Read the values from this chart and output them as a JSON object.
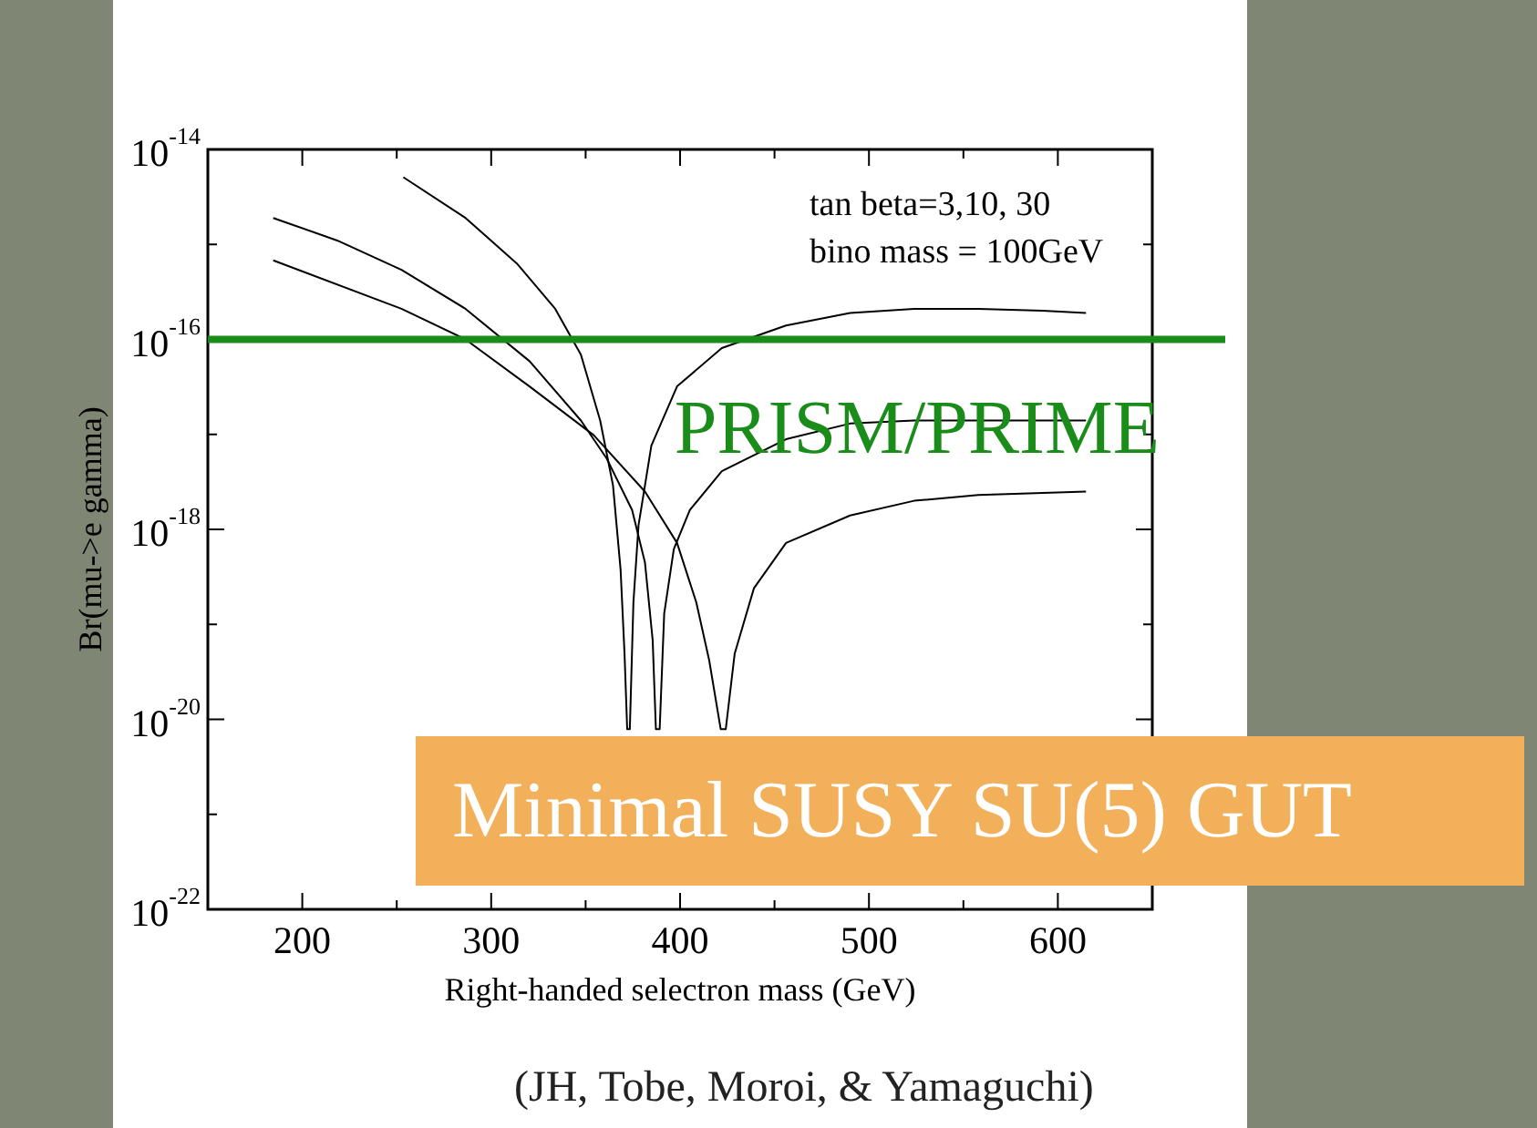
{
  "chart_data": {
    "type": "line",
    "xlabel": "Right-handed selectron mass (GeV)",
    "ylabel": "Br(mu->e gamma)",
    "log": "y",
    "xlim": [
      150,
      650
    ],
    "ylim": [
      1e-22,
      1e-14
    ],
    "xticks": [
      200,
      {
        "value": 250,
        "label": null
      },
      300,
      {
        "value": 350,
        "label": null
      },
      400,
      {
        "value": 450,
        "label": null
      },
      500,
      {
        "value": 550,
        "label": null
      },
      600
    ],
    "yticks": [
      {
        "value": 1e-22,
        "label": "10$^{-22}$"
      },
      {
        "value": 1e-21,
        "label": null
      },
      {
        "value": 1e-20,
        "label": "10$^{-20}$"
      },
      {
        "value": 1e-19,
        "label": null
      },
      {
        "value": 1e-18,
        "label": "10$^{-18}$"
      },
      {
        "value": 1e-17,
        "label": null
      },
      {
        "value": 1e-16,
        "label": "10$^{-16}$"
      },
      {
        "value": 1e-15,
        "label": null
      },
      {
        "value": 1e-14,
        "label": "10$^{-14}$"
      }
    ],
    "marker": "none",
    "legend": false,
    "grid": false,
    "series": [
      {
        "color": "#000000",
        "x": [
          253.5,
          286.4,
          313.6,
          333.9,
          347.5,
          357.7,
          364.5,
          368.5,
          370.6,
          372.0,
          373.4,
          375.3,
          378.0,
          384.8,
          398.4,
          422.1,
          456.1,
          490.0,
          523.9,
          557.9,
          591.8,
          614.9
        ],
        "values": [
          5.1e-15,
          1.9e-15,
          6.3e-16,
          2.1e-16,
          6.9e-17,
          1.4e-17,
          2.9e-18,
          3.8e-19,
          4.9e-20,
          7.9e-21,
          7.9e-21,
          1.7e-19,
          1.1e-18,
          7.6e-18,
          3.2e-17,
          8.1e-17,
          1.4e-16,
          1.9e-16,
          2.1e-16,
          2.1e-16,
          2e-16,
          1.9e-16
        ]
      },
      {
        "color": "#000000",
        "x": [
          184.6,
          218.5,
          252.5,
          286.4,
          320.3,
          347.5,
          361.1,
          374.6,
          381.4,
          385.5,
          387.2,
          389.2,
          391.6,
          396.7,
          405.2,
          422.1,
          456.1,
          490.0,
          523.9,
          557.9,
          614.9
        ],
        "values": [
          1.9e-15,
          1.1e-15,
          5.4e-16,
          2.1e-16,
          5.9e-17,
          1.4e-17,
          5.6e-18,
          1.6e-18,
          4.5e-19,
          6.8e-20,
          7.9e-21,
          7.9e-21,
          1.3e-19,
          6.2e-19,
          1.6e-18,
          4.1e-18,
          8.9e-18,
          1.3e-17,
          1.4e-17,
          1.4e-17,
          1.4e-17
        ]
      },
      {
        "color": "#000000",
        "x": [
          184.6,
          252.5,
          286.4,
          320.3,
          354.3,
          381.4,
          398.4,
          408.6,
          415.4,
          421.5,
          424.2,
          428.9,
          439.1,
          456.1,
          490.0,
          523.9,
          557.9,
          614.9
        ],
        "values": [
          6.8e-16,
          2.1e-16,
          1e-16,
          3.2e-17,
          9.8e-18,
          2.5e-18,
          7.2e-19,
          1.7e-19,
          4.2e-20,
          7.9e-21,
          7.9e-21,
          4.9e-20,
          2.4e-19,
          7.2e-19,
          1.4e-18,
          2e-18,
          2.3e-18,
          2.5e-18
        ]
      }
    ],
    "ref_lines": [
      {
        "axis": "y",
        "value": 1e-16,
        "label": "PRISM/PRIME",
        "color": "#1a8c1a"
      }
    ],
    "annotations": [
      "tan beta=3,10, 30",
      "bino mass = 100GeV",
      "Minimal SUSY SU(5) GUT",
      "(JH, Tobe, Moroi, & Yamaguchi)"
    ]
  }
}
